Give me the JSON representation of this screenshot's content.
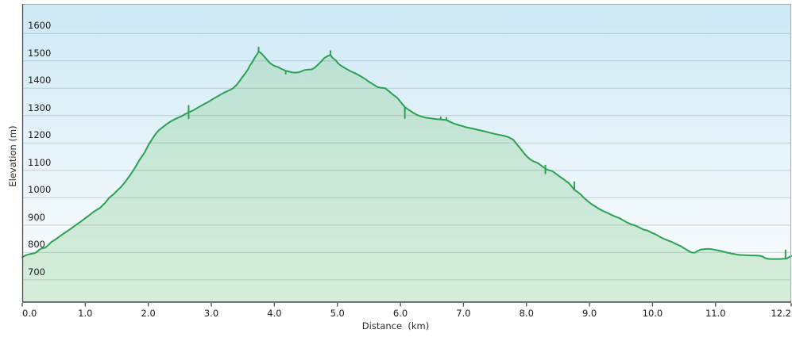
{
  "chart": {
    "colors": {
      "line": "#2da053",
      "fill": "rgba(140,205,150,0.35)",
      "bg_top": "#cde9f5",
      "bg_mid": "#e4f2f9",
      "bg_low": "#f4fafc",
      "bg_bottom": "#fdfefd",
      "grid": "rgba(100,125,135,0.30)",
      "frame_light": "#a6afb5",
      "frame_dark": "#4d4d4d",
      "tick_text": "#1b1b1b"
    }
  },
  "chart_data": {
    "type": "area",
    "title": "",
    "xlabel": "Distance  (km)",
    "ylabel": "Elevation (m)",
    "xlim": [
      0,
      12.2
    ],
    "ylim": [
      617,
      1708
    ],
    "grid": "horizontal",
    "legend": "none",
    "x_ticks": [
      {
        "label": "0.0",
        "km": 0
      },
      {
        "label": "1.0",
        "km": 1
      },
      {
        "label": "2.0",
        "km": 2
      },
      {
        "label": "3.0",
        "km": 3
      },
      {
        "label": "4.0",
        "km": 4
      },
      {
        "label": "5.0",
        "km": 5
      },
      {
        "label": "6.0",
        "km": 6
      },
      {
        "label": "7.0",
        "km": 7
      },
      {
        "label": "8.0",
        "km": 8
      },
      {
        "label": "9.0",
        "km": 9
      },
      {
        "label": "10.0",
        "km": 10
      },
      {
        "label": "11.0",
        "km": 11
      },
      {
        "label": "12.2",
        "km": 12.2
      }
    ],
    "y_ticks": [
      {
        "label": "700",
        "m": 700
      },
      {
        "label": "800",
        "m": 800
      },
      {
        "label": "900",
        "m": 900
      },
      {
        "label": "1000",
        "m": 1000
      },
      {
        "label": "1100",
        "m": 1100
      },
      {
        "label": "1200",
        "m": 1200
      },
      {
        "label": "1300",
        "m": 1300
      },
      {
        "label": "1400",
        "m": 1400
      },
      {
        "label": "1500",
        "m": 1500
      },
      {
        "label": "1600",
        "m": 1600
      }
    ],
    "points": [
      [
        0,
        783
      ],
      [
        0.06,
        790
      ],
      [
        0.12,
        794
      ],
      [
        0.19,
        797
      ],
      [
        0.22,
        800
      ],
      [
        0.27,
        810
      ],
      [
        0.31,
        815
      ],
      [
        0.36,
        817
      ],
      [
        0.41,
        826
      ],
      [
        0.46,
        838
      ],
      [
        0.53,
        848
      ],
      [
        0.59,
        858
      ],
      [
        0.65,
        868
      ],
      [
        0.71,
        877
      ],
      [
        0.78,
        888
      ],
      [
        0.85,
        900
      ],
      [
        0.93,
        913
      ],
      [
        1.0,
        925
      ],
      [
        1.07,
        937
      ],
      [
        1.13,
        948
      ],
      [
        1.19,
        957
      ],
      [
        1.23,
        962
      ],
      [
        1.31,
        980
      ],
      [
        1.38,
        1000
      ],
      [
        1.45,
        1013
      ],
      [
        1.51,
        1027
      ],
      [
        1.57,
        1040
      ],
      [
        1.63,
        1057
      ],
      [
        1.71,
        1082
      ],
      [
        1.79,
        1110
      ],
      [
        1.86,
        1138
      ],
      [
        1.94,
        1165
      ],
      [
        2.01,
        1196
      ],
      [
        2.1,
        1228
      ],
      [
        2.16,
        1245
      ],
      [
        2.23,
        1258
      ],
      [
        2.29,
        1269
      ],
      [
        2.35,
        1278
      ],
      [
        2.43,
        1288
      ],
      [
        2.52,
        1297
      ],
      [
        2.58,
        1305
      ],
      [
        2.64,
        1312
      ],
      [
        2.64,
        1336
      ],
      [
        2.64,
        1290
      ],
      [
        2.64,
        1312
      ],
      [
        2.72,
        1320
      ],
      [
        2.79,
        1330
      ],
      [
        2.87,
        1340
      ],
      [
        2.95,
        1350
      ],
      [
        3.02,
        1360
      ],
      [
        3.11,
        1372
      ],
      [
        3.17,
        1380
      ],
      [
        3.24,
        1388
      ],
      [
        3.3,
        1394
      ],
      [
        3.35,
        1401
      ],
      [
        3.4,
        1412
      ],
      [
        3.44,
        1424
      ],
      [
        3.49,
        1440
      ],
      [
        3.53,
        1452
      ],
      [
        3.58,
        1468
      ],
      [
        3.61,
        1482
      ],
      [
        3.65,
        1496
      ],
      [
        3.69,
        1512
      ],
      [
        3.73,
        1526
      ],
      [
        3.75,
        1534
      ],
      [
        3.75,
        1549
      ],
      [
        3.75,
        1534
      ],
      [
        3.79,
        1528
      ],
      [
        3.84,
        1516
      ],
      [
        3.88,
        1505
      ],
      [
        3.93,
        1492
      ],
      [
        3.99,
        1483
      ],
      [
        4.06,
        1477
      ],
      [
        4.12,
        1470
      ],
      [
        4.18,
        1464
      ],
      [
        4.18,
        1453
      ],
      [
        4.18,
        1464
      ],
      [
        4.23,
        1461
      ],
      [
        4.28,
        1458
      ],
      [
        4.33,
        1457
      ],
      [
        4.38,
        1458
      ],
      [
        4.43,
        1462
      ],
      [
        4.47,
        1466
      ],
      [
        4.52,
        1468
      ],
      [
        4.59,
        1469
      ],
      [
        4.64,
        1475
      ],
      [
        4.69,
        1486
      ],
      [
        4.74,
        1497
      ],
      [
        4.79,
        1510
      ],
      [
        4.84,
        1517
      ],
      [
        4.89,
        1522
      ],
      [
        4.89,
        1536
      ],
      [
        4.89,
        1522
      ],
      [
        4.92,
        1512
      ],
      [
        4.98,
        1501
      ],
      [
        5.01,
        1491
      ],
      [
        5.06,
        1482
      ],
      [
        5.14,
        1471
      ],
      [
        5.21,
        1462
      ],
      [
        5.28,
        1455
      ],
      [
        5.34,
        1448
      ],
      [
        5.39,
        1441
      ],
      [
        5.44,
        1434
      ],
      [
        5.5,
        1424
      ],
      [
        5.57,
        1414
      ],
      [
        5.61,
        1408
      ],
      [
        5.64,
        1404
      ],
      [
        5.69,
        1402
      ],
      [
        5.76,
        1400
      ],
      [
        5.79,
        1394
      ],
      [
        5.82,
        1389
      ],
      [
        5.88,
        1377
      ],
      [
        5.95,
        1365
      ],
      [
        6.01,
        1348
      ],
      [
        6.07,
        1331
      ],
      [
        6.07,
        1291
      ],
      [
        6.07,
        1331
      ],
      [
        6.14,
        1320
      ],
      [
        6.2,
        1311
      ],
      [
        6.26,
        1303
      ],
      [
        6.33,
        1297
      ],
      [
        6.39,
        1293
      ],
      [
        6.45,
        1291
      ],
      [
        6.51,
        1289
      ],
      [
        6.58,
        1287
      ],
      [
        6.64,
        1286
      ],
      [
        6.64,
        1294
      ],
      [
        6.64,
        1286
      ],
      [
        6.73,
        1284
      ],
      [
        6.73,
        1292
      ],
      [
        6.73,
        1284
      ],
      [
        6.8,
        1276
      ],
      [
        6.85,
        1271
      ],
      [
        6.93,
        1265
      ],
      [
        6.98,
        1262
      ],
      [
        7.05,
        1257
      ],
      [
        7.14,
        1253
      ],
      [
        7.23,
        1248
      ],
      [
        7.33,
        1243
      ],
      [
        7.41,
        1238
      ],
      [
        7.48,
        1234
      ],
      [
        7.56,
        1230
      ],
      [
        7.63,
        1227
      ],
      [
        7.71,
        1222
      ],
      [
        7.79,
        1212
      ],
      [
        7.86,
        1192
      ],
      [
        7.91,
        1178
      ],
      [
        7.96,
        1163
      ],
      [
        8.01,
        1150
      ],
      [
        8.06,
        1140
      ],
      [
        8.11,
        1133
      ],
      [
        8.17,
        1128
      ],
      [
        8.23,
        1118
      ],
      [
        8.3,
        1106
      ],
      [
        8.3,
        1118
      ],
      [
        8.3,
        1089
      ],
      [
        8.3,
        1106
      ],
      [
        8.35,
        1101
      ],
      [
        8.41,
        1097
      ],
      [
        8.46,
        1089
      ],
      [
        8.51,
        1080
      ],
      [
        8.56,
        1072
      ],
      [
        8.6,
        1066
      ],
      [
        8.63,
        1060
      ],
      [
        8.67,
        1054
      ],
      [
        8.72,
        1040
      ],
      [
        8.76,
        1029
      ],
      [
        8.76,
        1057
      ],
      [
        8.76,
        1029
      ],
      [
        8.81,
        1021
      ],
      [
        8.85,
        1014
      ],
      [
        8.91,
        1000
      ],
      [
        8.97,
        988
      ],
      [
        9.03,
        977
      ],
      [
        9.1,
        967
      ],
      [
        9.16,
        958
      ],
      [
        9.22,
        951
      ],
      [
        9.29,
        944
      ],
      [
        9.35,
        937
      ],
      [
        9.41,
        931
      ],
      [
        9.48,
        925
      ],
      [
        9.54,
        917
      ],
      [
        9.6,
        909
      ],
      [
        9.66,
        903
      ],
      [
        9.73,
        898
      ],
      [
        9.8,
        890
      ],
      [
        9.85,
        884
      ],
      [
        9.92,
        880
      ],
      [
        9.98,
        873
      ],
      [
        10.05,
        866
      ],
      [
        10.11,
        858
      ],
      [
        10.17,
        851
      ],
      [
        10.23,
        845
      ],
      [
        10.31,
        838
      ],
      [
        10.38,
        830
      ],
      [
        10.45,
        823
      ],
      [
        10.49,
        817
      ],
      [
        10.54,
        810
      ],
      [
        10.59,
        803
      ],
      [
        10.62,
        800
      ],
      [
        10.67,
        799
      ],
      [
        10.71,
        805
      ],
      [
        10.76,
        810
      ],
      [
        10.81,
        812
      ],
      [
        10.86,
        813
      ],
      [
        10.91,
        813
      ],
      [
        10.96,
        811
      ],
      [
        11.03,
        808
      ],
      [
        11.09,
        805
      ],
      [
        11.14,
        802
      ],
      [
        11.19,
        799
      ],
      [
        11.25,
        796
      ],
      [
        11.3,
        794
      ],
      [
        11.35,
        792
      ],
      [
        11.4,
        791
      ],
      [
        11.47,
        790
      ],
      [
        11.54,
        789
      ],
      [
        11.62,
        789
      ],
      [
        11.7,
        788
      ],
      [
        11.75,
        785
      ],
      [
        11.78,
        780
      ],
      [
        11.82,
        777
      ],
      [
        11.87,
        776
      ],
      [
        11.93,
        776
      ],
      [
        11.98,
        776
      ],
      [
        12.03,
        776
      ],
      [
        12.07,
        777
      ],
      [
        12.11,
        777
      ],
      [
        12.11,
        808
      ],
      [
        12.11,
        777
      ],
      [
        12.14,
        779
      ],
      [
        12.16,
        782
      ],
      [
        12.2,
        787
      ]
    ]
  }
}
